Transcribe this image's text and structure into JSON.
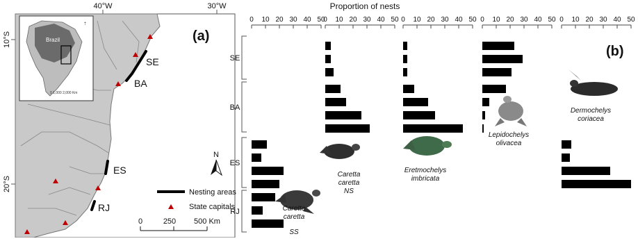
{
  "map": {
    "panel_label": "(a)",
    "lon_labels": [
      "40°W",
      "30°W"
    ],
    "lat_labels": [
      "10°S",
      "20°S"
    ],
    "state_labels": [
      "SE",
      "BA",
      "ES",
      "RJ"
    ],
    "inset": {
      "country_label": "Brazil",
      "scalebar_text": "0   1,000  2,000 Km"
    },
    "legend": {
      "nesting_label": "Nesting areas",
      "capitals_label": "State capitals"
    },
    "scalebar": {
      "ticks": [
        "0",
        "250",
        "500 Km"
      ]
    },
    "north_label": "N",
    "colors": {
      "land": "#c9c9c9",
      "sea": "#ffffff",
      "nesting": "#000000",
      "capital": "#c00000"
    }
  },
  "chart_data": {
    "type": "bar",
    "panel_label": "(b)",
    "title": "Proportion of nests",
    "regions": [
      "SE",
      "BA",
      "ES",
      "RJ"
    ],
    "tick_labels": [
      "0",
      "10",
      "20",
      "30",
      "40",
      "50"
    ],
    "xlim": [
      0,
      50
    ],
    "bar_color": "#000000",
    "panels": [
      {
        "species_lines": [
          "Caretta",
          "caretta",
          "SS"
        ],
        "series": [
          {
            "region": "SE",
            "values": []
          },
          {
            "region": "BA",
            "values": []
          },
          {
            "region": "ES",
            "values": [
              11,
              7,
              23,
              20
            ]
          },
          {
            "region": "RJ",
            "values": [
              17,
              8,
              23
            ]
          }
        ]
      },
      {
        "species_lines": [
          "Caretta",
          "caretta",
          "NS"
        ],
        "series": [
          {
            "region": "SE",
            "values": [
              4,
              4,
              6
            ]
          },
          {
            "region": "BA",
            "values": [
              11,
              15,
              26,
              32
            ]
          }
        ]
      },
      {
        "species_lines": [
          "Eretmochelys",
          "imbricata"
        ],
        "series": [
          {
            "region": "SE",
            "values": [
              3,
              3,
              3
            ]
          },
          {
            "region": "BA",
            "values": [
              8,
              18,
              23,
              43
            ]
          }
        ]
      },
      {
        "species_lines": [
          "Lepidochelys",
          "olivacea"
        ],
        "series": [
          {
            "region": "SE",
            "values": [
              23,
              29,
              21
            ]
          },
          {
            "region": "BA",
            "values": [
              17,
              5,
              2,
              1
            ]
          }
        ]
      },
      {
        "species_lines": [
          "Dermochelys",
          "coriacea"
        ],
        "series": [
          {
            "region": "ES",
            "values": [
              7,
              6,
              35,
              50
            ]
          }
        ]
      }
    ]
  }
}
